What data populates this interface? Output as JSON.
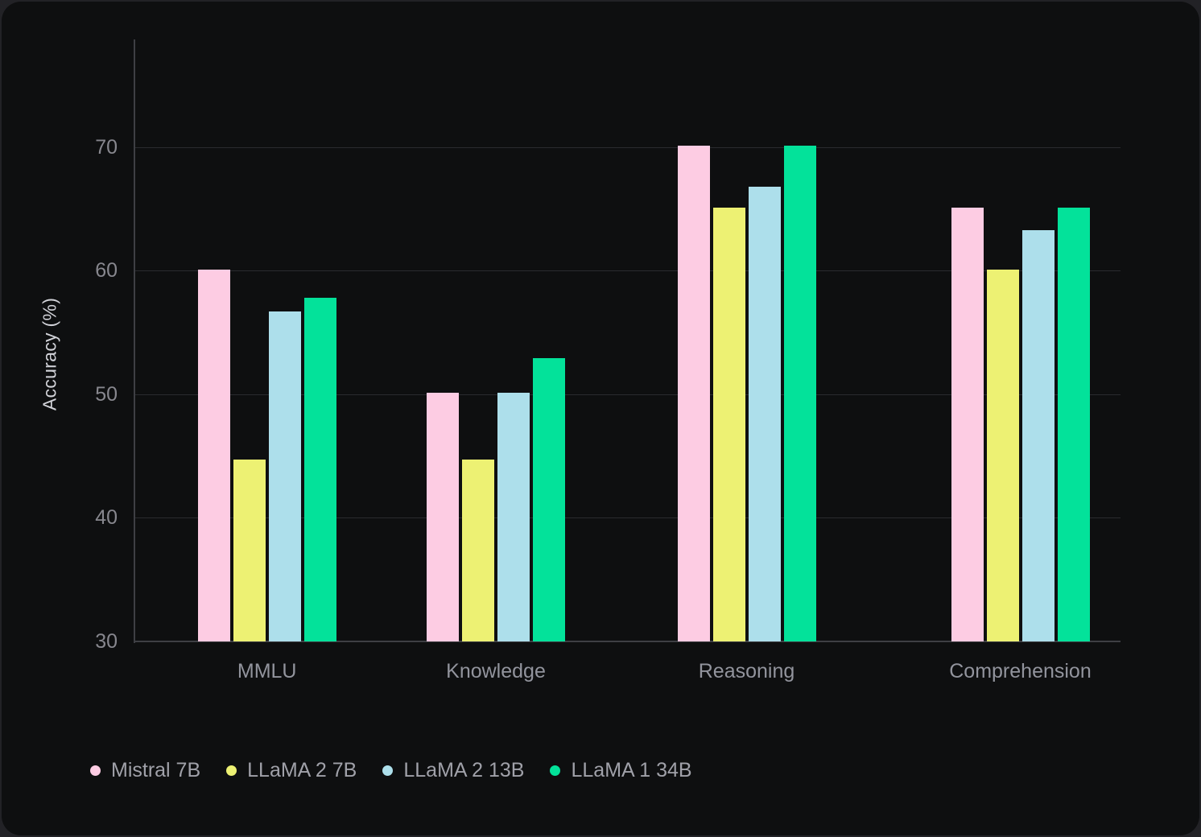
{
  "chart_data": {
    "type": "bar",
    "title": "",
    "xlabel": "",
    "ylabel": "Accuracy (%)",
    "categories": [
      "MMLU",
      "Knowledge",
      "Reasoning",
      "Comprehension"
    ],
    "series": [
      {
        "name": "Mistral 7B",
        "color": "#fdcce3",
        "values": [
          60.1,
          50.1,
          70.1,
          65.1
        ]
      },
      {
        "name": "LLaMA 2 7B",
        "color": "#edf173",
        "values": [
          44.7,
          44.7,
          65.1,
          60.1
        ]
      },
      {
        "name": "LLaMA 2 13B",
        "color": "#addfeb",
        "values": [
          56.7,
          50.1,
          66.8,
          63.3
        ]
      },
      {
        "name": "LLaMA 1 34B",
        "color": "#03e29a",
        "values": [
          57.8,
          52.9,
          70.1,
          65.1
        ]
      }
    ],
    "yticks": [
      30,
      40,
      50,
      60,
      70
    ],
    "ylim": [
      30,
      78.7
    ],
    "grid": true,
    "legend_position": "bottom-left"
  },
  "colors": {
    "outer_bg": "#222226",
    "panel_bg": "#0e0f10",
    "gridline": "#2a2b2f",
    "axis_line": "#3e3f44",
    "tick_text": "#87878e",
    "category_text": "#92949d",
    "legend_text": "#a0a1a9",
    "axis_title_text": "#d2d3d9"
  }
}
